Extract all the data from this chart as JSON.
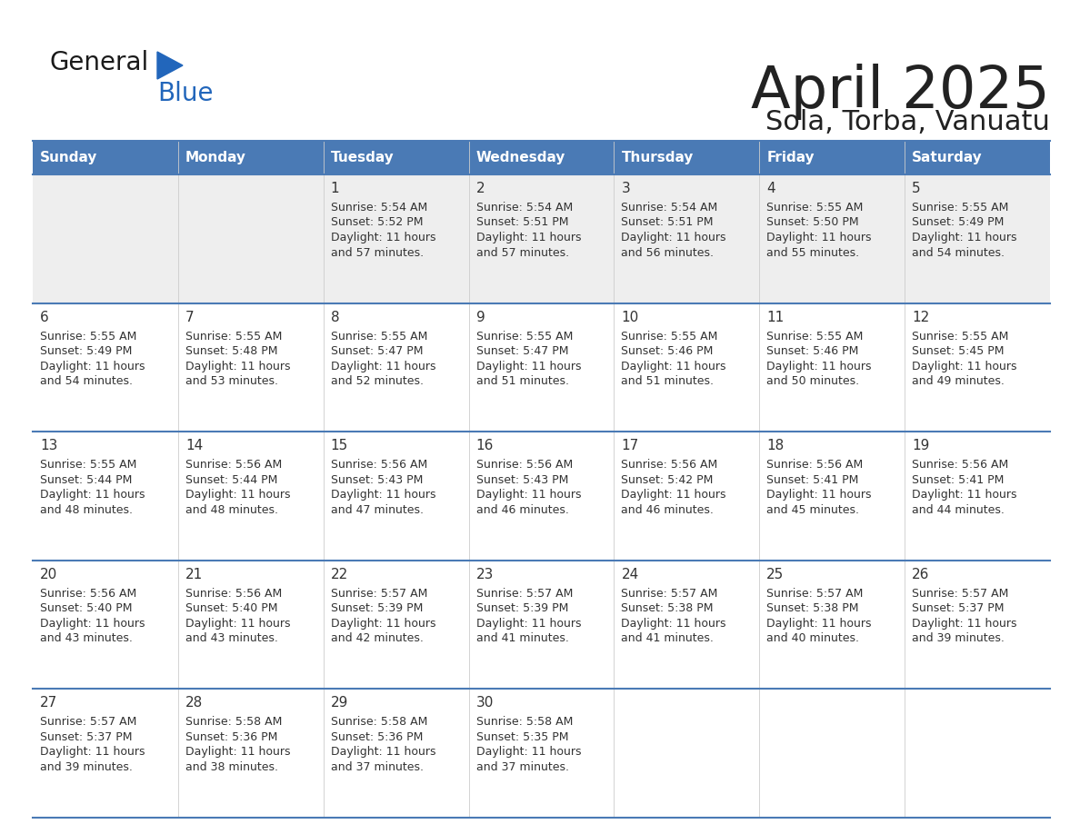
{
  "title": "April 2025",
  "subtitle": "Sola, Torba, Vanuatu",
  "days_of_week": [
    "Sunday",
    "Monday",
    "Tuesday",
    "Wednesday",
    "Thursday",
    "Friday",
    "Saturday"
  ],
  "header_bg": "#4a7ab5",
  "header_text": "#ffffff",
  "row1_bg": "#eeeeee",
  "row_bg": "#ffffff",
  "row_line_color": "#4a7ab5",
  "cell_border_color": "#cccccc",
  "text_color": "#333333",
  "title_color": "#222222",
  "logo_general_color": "#1a1a1a",
  "logo_blue_color": "#2266bb",
  "calendar_data": [
    [
      null,
      null,
      {
        "day": 1,
        "sunrise": "5:54 AM",
        "sunset": "5:52 PM",
        "daylight_line1": "Daylight: 11 hours",
        "daylight_line2": "and 57 minutes."
      },
      {
        "day": 2,
        "sunrise": "5:54 AM",
        "sunset": "5:51 PM",
        "daylight_line1": "Daylight: 11 hours",
        "daylight_line2": "and 57 minutes."
      },
      {
        "day": 3,
        "sunrise": "5:54 AM",
        "sunset": "5:51 PM",
        "daylight_line1": "Daylight: 11 hours",
        "daylight_line2": "and 56 minutes."
      },
      {
        "day": 4,
        "sunrise": "5:55 AM",
        "sunset": "5:50 PM",
        "daylight_line1": "Daylight: 11 hours",
        "daylight_line2": "and 55 minutes."
      },
      {
        "day": 5,
        "sunrise": "5:55 AM",
        "sunset": "5:49 PM",
        "daylight_line1": "Daylight: 11 hours",
        "daylight_line2": "and 54 minutes."
      }
    ],
    [
      {
        "day": 6,
        "sunrise": "5:55 AM",
        "sunset": "5:49 PM",
        "daylight_line1": "Daylight: 11 hours",
        "daylight_line2": "and 54 minutes."
      },
      {
        "day": 7,
        "sunrise": "5:55 AM",
        "sunset": "5:48 PM",
        "daylight_line1": "Daylight: 11 hours",
        "daylight_line2": "and 53 minutes."
      },
      {
        "day": 8,
        "sunrise": "5:55 AM",
        "sunset": "5:47 PM",
        "daylight_line1": "Daylight: 11 hours",
        "daylight_line2": "and 52 minutes."
      },
      {
        "day": 9,
        "sunrise": "5:55 AM",
        "sunset": "5:47 PM",
        "daylight_line1": "Daylight: 11 hours",
        "daylight_line2": "and 51 minutes."
      },
      {
        "day": 10,
        "sunrise": "5:55 AM",
        "sunset": "5:46 PM",
        "daylight_line1": "Daylight: 11 hours",
        "daylight_line2": "and 51 minutes."
      },
      {
        "day": 11,
        "sunrise": "5:55 AM",
        "sunset": "5:46 PM",
        "daylight_line1": "Daylight: 11 hours",
        "daylight_line2": "and 50 minutes."
      },
      {
        "day": 12,
        "sunrise": "5:55 AM",
        "sunset": "5:45 PM",
        "daylight_line1": "Daylight: 11 hours",
        "daylight_line2": "and 49 minutes."
      }
    ],
    [
      {
        "day": 13,
        "sunrise": "5:55 AM",
        "sunset": "5:44 PM",
        "daylight_line1": "Daylight: 11 hours",
        "daylight_line2": "and 48 minutes."
      },
      {
        "day": 14,
        "sunrise": "5:56 AM",
        "sunset": "5:44 PM",
        "daylight_line1": "Daylight: 11 hours",
        "daylight_line2": "and 48 minutes."
      },
      {
        "day": 15,
        "sunrise": "5:56 AM",
        "sunset": "5:43 PM",
        "daylight_line1": "Daylight: 11 hours",
        "daylight_line2": "and 47 minutes."
      },
      {
        "day": 16,
        "sunrise": "5:56 AM",
        "sunset": "5:43 PM",
        "daylight_line1": "Daylight: 11 hours",
        "daylight_line2": "and 46 minutes."
      },
      {
        "day": 17,
        "sunrise": "5:56 AM",
        "sunset": "5:42 PM",
        "daylight_line1": "Daylight: 11 hours",
        "daylight_line2": "and 46 minutes."
      },
      {
        "day": 18,
        "sunrise": "5:56 AM",
        "sunset": "5:41 PM",
        "daylight_line1": "Daylight: 11 hours",
        "daylight_line2": "and 45 minutes."
      },
      {
        "day": 19,
        "sunrise": "5:56 AM",
        "sunset": "5:41 PM",
        "daylight_line1": "Daylight: 11 hours",
        "daylight_line2": "and 44 minutes."
      }
    ],
    [
      {
        "day": 20,
        "sunrise": "5:56 AM",
        "sunset": "5:40 PM",
        "daylight_line1": "Daylight: 11 hours",
        "daylight_line2": "and 43 minutes."
      },
      {
        "day": 21,
        "sunrise": "5:56 AM",
        "sunset": "5:40 PM",
        "daylight_line1": "Daylight: 11 hours",
        "daylight_line2": "and 43 minutes."
      },
      {
        "day": 22,
        "sunrise": "5:57 AM",
        "sunset": "5:39 PM",
        "daylight_line1": "Daylight: 11 hours",
        "daylight_line2": "and 42 minutes."
      },
      {
        "day": 23,
        "sunrise": "5:57 AM",
        "sunset": "5:39 PM",
        "daylight_line1": "Daylight: 11 hours",
        "daylight_line2": "and 41 minutes."
      },
      {
        "day": 24,
        "sunrise": "5:57 AM",
        "sunset": "5:38 PM",
        "daylight_line1": "Daylight: 11 hours",
        "daylight_line2": "and 41 minutes."
      },
      {
        "day": 25,
        "sunrise": "5:57 AM",
        "sunset": "5:38 PM",
        "daylight_line1": "Daylight: 11 hours",
        "daylight_line2": "and 40 minutes."
      },
      {
        "day": 26,
        "sunrise": "5:57 AM",
        "sunset": "5:37 PM",
        "daylight_line1": "Daylight: 11 hours",
        "daylight_line2": "and 39 minutes."
      }
    ],
    [
      {
        "day": 27,
        "sunrise": "5:57 AM",
        "sunset": "5:37 PM",
        "daylight_line1": "Daylight: 11 hours",
        "daylight_line2": "and 39 minutes."
      },
      {
        "day": 28,
        "sunrise": "5:58 AM",
        "sunset": "5:36 PM",
        "daylight_line1": "Daylight: 11 hours",
        "daylight_line2": "and 38 minutes."
      },
      {
        "day": 29,
        "sunrise": "5:58 AM",
        "sunset": "5:36 PM",
        "daylight_line1": "Daylight: 11 hours",
        "daylight_line2": "and 37 minutes."
      },
      {
        "day": 30,
        "sunrise": "5:58 AM",
        "sunset": "5:35 PM",
        "daylight_line1": "Daylight: 11 hours",
        "daylight_line2": "and 37 minutes."
      },
      null,
      null,
      null
    ]
  ]
}
